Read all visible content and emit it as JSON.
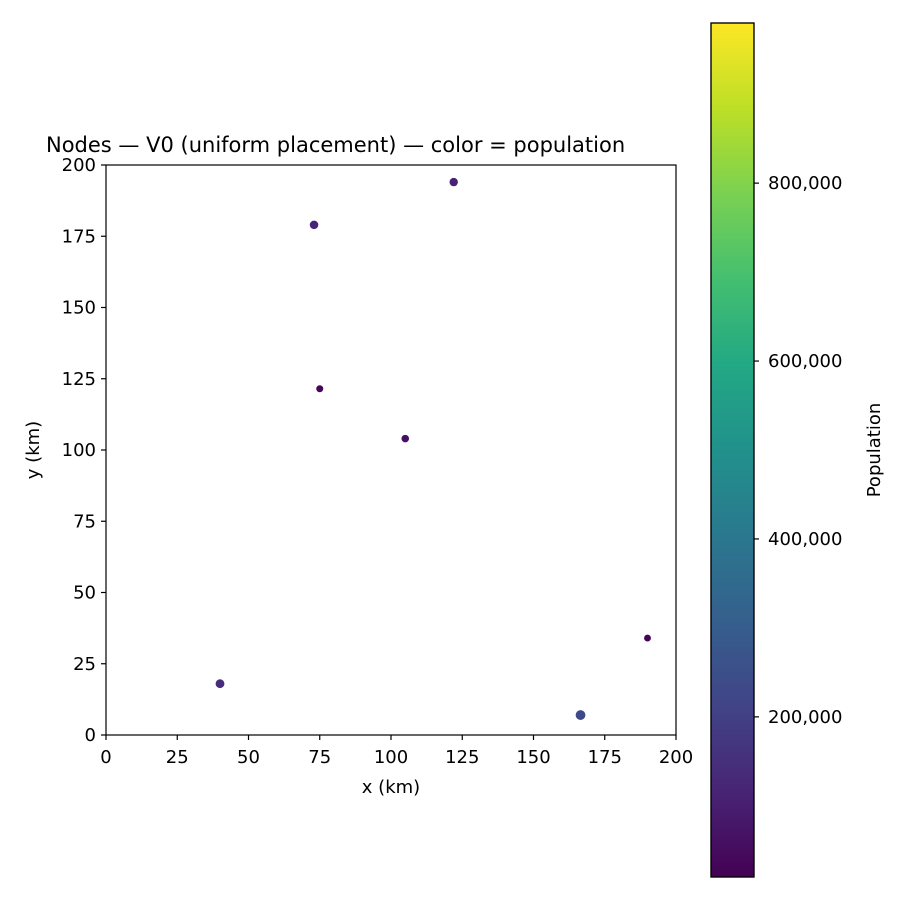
{
  "chart_data": {
    "type": "scatter",
    "title": "Nodes — V0 (uniform placement) — color = population",
    "xlabel": "x (km)",
    "ylabel": "y (km)",
    "xlim": [
      0,
      200
    ],
    "ylim": [
      0,
      200
    ],
    "xticks": [
      0,
      25,
      50,
      75,
      100,
      125,
      150,
      175,
      200
    ],
    "yticks": [
      0,
      25,
      50,
      75,
      100,
      125,
      150,
      175,
      200
    ],
    "xtick_labels": [
      "0",
      "25",
      "50",
      "75",
      "100",
      "125",
      "150",
      "175",
      "200"
    ],
    "ytick_labels": [
      "0",
      "25",
      "50",
      "75",
      "100",
      "125",
      "150",
      "175",
      "200"
    ],
    "grid": false,
    "colormap": "viridis",
    "colorbar": {
      "label": "Population",
      "range": [
        20000,
        980000
      ],
      "ticks": [
        200000,
        400000,
        600000,
        800000
      ],
      "tick_labels": [
        "200,000",
        "400,000",
        "600,000",
        "800,000"
      ]
    },
    "points": [
      {
        "x": 122,
        "y": 194,
        "population": 110000
      },
      {
        "x": 73,
        "y": 179,
        "population": 120000
      },
      {
        "x": 75,
        "y": 121.5,
        "population": 35000
      },
      {
        "x": 105,
        "y": 104,
        "population": 60000
      },
      {
        "x": 190,
        "y": 34,
        "population": 30000
      },
      {
        "x": 40,
        "y": 18,
        "population": 140000
      },
      {
        "x": 166.5,
        "y": 7,
        "population": 230000
      }
    ]
  }
}
